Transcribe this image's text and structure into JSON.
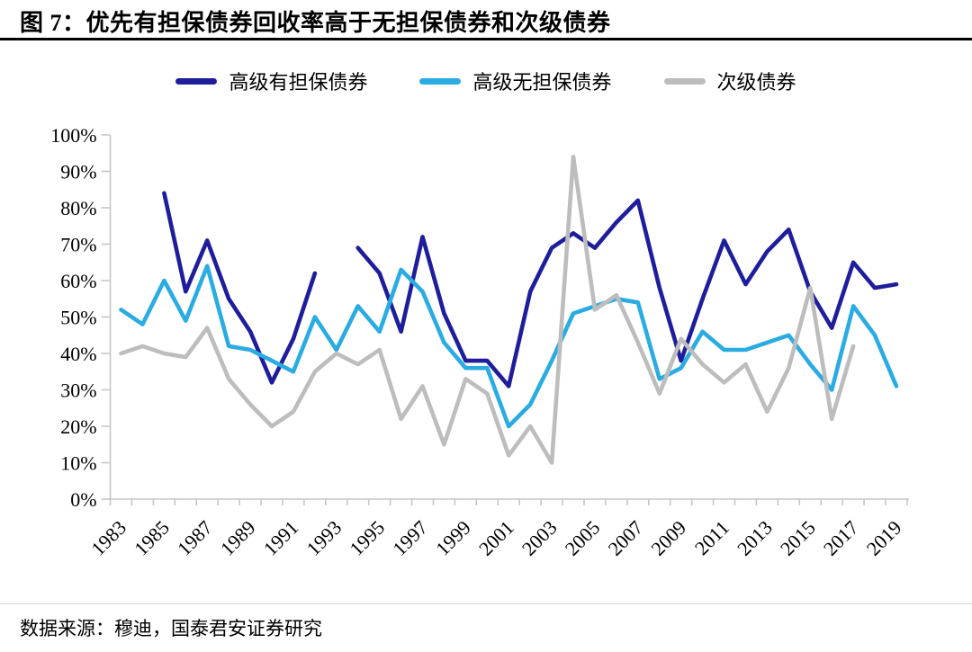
{
  "header": {
    "title": "图 7：优先有担保债券回收率高于无担保债券和次级债券"
  },
  "footer": {
    "source": "数据来源：穆迪，国泰君安证券研究"
  },
  "colors": {
    "senior_secured": "#1E1E9C",
    "senior_unsecured": "#2AACE3",
    "subordinated": "#BDBDBD",
    "axis": "#C6C6C6",
    "title_rule": "#000000",
    "footer_rule": "#CFCFCF"
  },
  "chart_data": {
    "type": "line",
    "x": [
      1983,
      1984,
      1985,
      1986,
      1987,
      1988,
      1989,
      1990,
      1991,
      1992,
      1993,
      1994,
      1995,
      1996,
      1997,
      1998,
      1999,
      2000,
      2001,
      2002,
      2003,
      2004,
      2005,
      2006,
      2007,
      2008,
      2009,
      2010,
      2011,
      2012,
      2013,
      2014,
      2015,
      2016,
      2017,
      2018,
      2019
    ],
    "series": [
      {
        "name": "高级有担保债券",
        "color": "#1E1E9C",
        "values": [
          null,
          null,
          84,
          57,
          71,
          55,
          46,
          32,
          44,
          62,
          null,
          69,
          62,
          46,
          72,
          51,
          38,
          38,
          31,
          57,
          69,
          73,
          69,
          76,
          82,
          58,
          38,
          55,
          71,
          59,
          68,
          74,
          57,
          47,
          65,
          58,
          59
        ]
      },
      {
        "name": "高级无担保债券",
        "color": "#2AACE3",
        "values": [
          52,
          48,
          60,
          49,
          64,
          42,
          41,
          38,
          35,
          50,
          41,
          53,
          46,
          63,
          57,
          43,
          36,
          36,
          20,
          26,
          38,
          51,
          53,
          55,
          54,
          33,
          36,
          46,
          41,
          41,
          43,
          45,
          37,
          30,
          53,
          45,
          31
        ]
      },
      {
        "name": "次级债券",
        "color": "#BDBDBD",
        "values": [
          40,
          42,
          40,
          39,
          47,
          33,
          26,
          20,
          24,
          35,
          40,
          37,
          41,
          22,
          31,
          15,
          33,
          29,
          12,
          20,
          10,
          94,
          52,
          56,
          43,
          29,
          44,
          37,
          32,
          37,
          24,
          36,
          58,
          22,
          42,
          null,
          null
        ]
      }
    ],
    "ylim": [
      0,
      100
    ],
    "ytick_step": 10,
    "ytick_format": "percent",
    "xtick_label_step": 2,
    "grid": false,
    "legend_position": "top"
  }
}
